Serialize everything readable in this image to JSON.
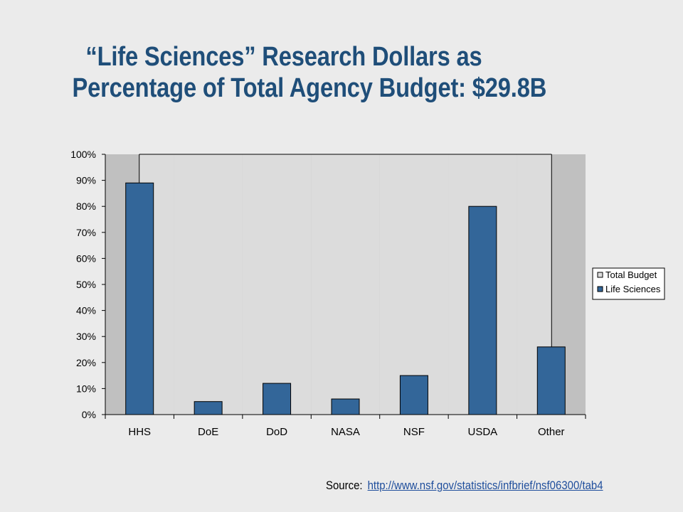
{
  "title": {
    "line1": "“Life Sciences” Research Dollars as",
    "line2": "Percentage of Total Agency Budget: $29.8B"
  },
  "source": {
    "label": "Source:",
    "link": "http://www.nsf.gov/statistics/infbrief/nsf06300/tab4"
  },
  "colors": {
    "title": "#1f4e79",
    "life_sciences": "#336699",
    "total_budget": "#dcdcdc",
    "plot_area": "#c0c0c0"
  },
  "chart_data": {
    "type": "bar",
    "categories": [
      "HHS",
      "DoE",
      "DoD",
      "NASA",
      "NSF",
      "USDA",
      "Other"
    ],
    "series": [
      {
        "name": "Total Budget",
        "values": [
          100,
          100,
          100,
          100,
          100,
          100,
          100
        ]
      },
      {
        "name": "Life Sciences",
        "values": [
          89,
          5,
          12,
          6,
          15,
          80,
          26
        ]
      }
    ],
    "yticks": [
      "0%",
      "10%",
      "20%",
      "30%",
      "40%",
      "50%",
      "60%",
      "70%",
      "80%",
      "90%",
      "100%"
    ],
    "ylim": [
      0,
      100
    ],
    "grid": false,
    "legend": "right"
  }
}
